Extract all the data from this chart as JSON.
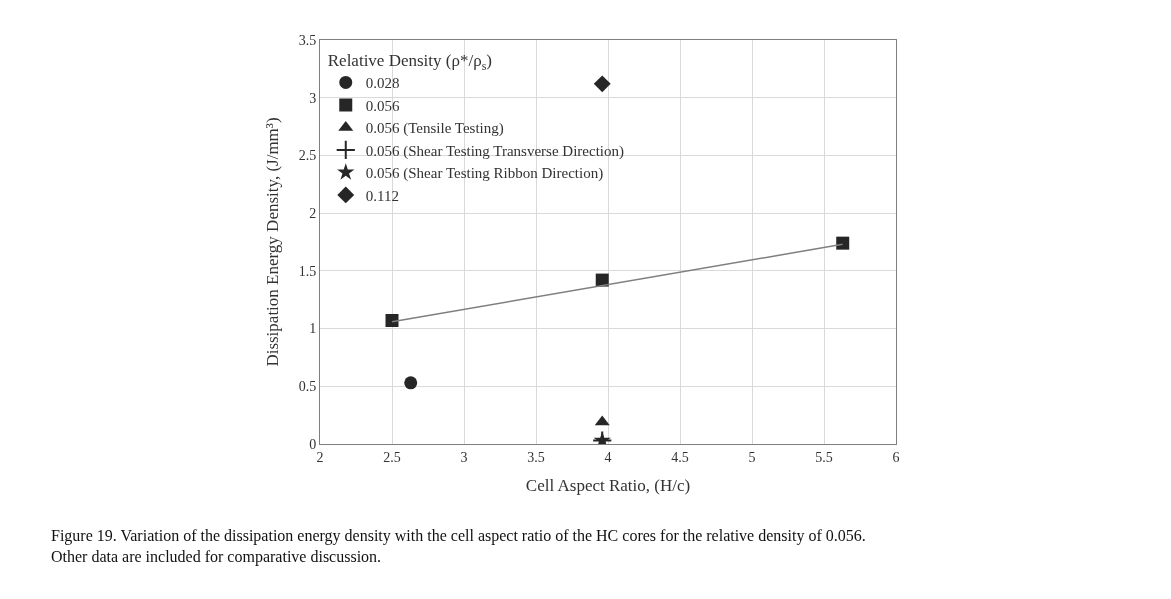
{
  "chart_data": {
    "type": "scatter",
    "xlabel": "Cell Aspect Ratio, (H/c)",
    "ylabel": "Dissipation Energy Density, (J/mm³)",
    "legend_title": "Relative Density (ρ*/ρ$_{s}$)",
    "xlim": [
      2,
      6
    ],
    "xticks": [
      2,
      2.5,
      3,
      3.5,
      4,
      4.5,
      5,
      5.5,
      6
    ],
    "ylim": [
      0,
      3.5
    ],
    "yticks": [
      0,
      0.5,
      1,
      1.5,
      2,
      2.5,
      3,
      3.5
    ],
    "grid": true,
    "legend": "top left",
    "series": [
      {
        "name": "0.028",
        "color": "#262626",
        "marker": "circle",
        "x": [
          2.63
        ],
        "values": [
          0.53
        ]
      },
      {
        "name": "0.056",
        "color": "#262626",
        "marker": "square",
        "x": [
          2.5,
          3.96,
          5.63
        ],
        "values": [
          1.07,
          1.42,
          1.74
        ]
      },
      {
        "name": "0.056 (Tensile Testing)",
        "color": "#262626",
        "marker": "triangle",
        "x": [
          3.96
        ],
        "values": [
          0.19
        ]
      },
      {
        "name": "0.056 (Shear Testing Transverse Direction)",
        "color": "#262626",
        "marker": "cross",
        "x": [
          3.96
        ],
        "values": [
          0.03
        ]
      },
      {
        "name": "0.056 (Shear Testing Ribbon Direction)",
        "color": "#262626",
        "marker": "star",
        "x": [
          3.96
        ],
        "values": [
          0.03
        ]
      },
      {
        "name": "0.112",
        "color": "#262626",
        "marker": "diamond",
        "x": [
          3.96
        ],
        "values": [
          3.12
        ]
      },
      {
        "type": "line",
        "color": "#7f7f7f",
        "marker": "none",
        "x": [
          2.5,
          5.63
        ],
        "values": [
          1.06,
          1.73
        ]
      }
    ],
    "annotations": [
      "Figure 19. Variation of the dissipation energy density with the cell aspect ratio of the HC cores for the relative density of 0.056. Other data are included for comparative discussion."
    ]
  }
}
